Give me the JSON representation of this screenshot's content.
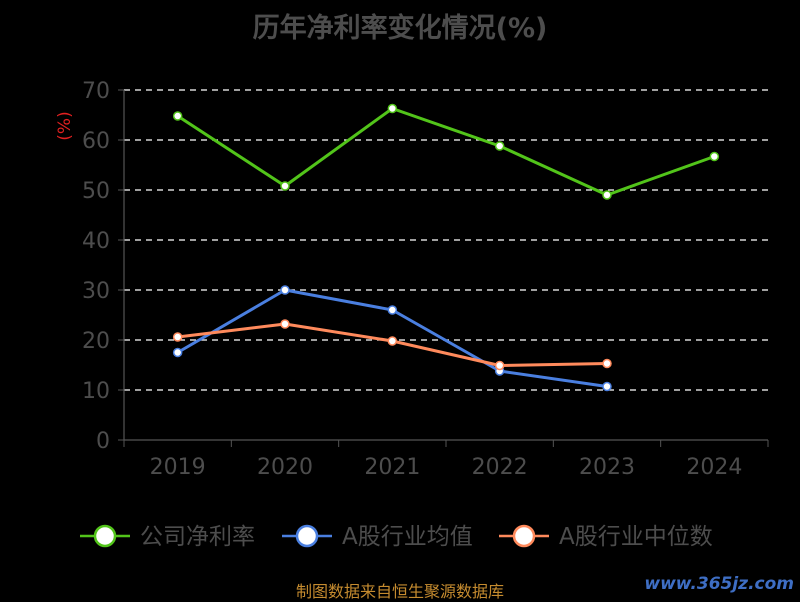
{
  "chart_data": {
    "type": "line",
    "title": "历年净利率变化情况(%)",
    "ylabel": "(%)",
    "ylim": [
      0,
      70
    ],
    "yticks": [
      0,
      10,
      20,
      30,
      40,
      50,
      60,
      70
    ],
    "grid": true,
    "legend_position": "bottom",
    "categories": [
      "2019",
      "2020",
      "2021",
      "2022",
      "2023",
      "2024"
    ],
    "series": [
      {
        "name": "公司净利率",
        "color": "#52c41a",
        "values": [
          64.8,
          50.8,
          66.3,
          58.8,
          49.0,
          56.7
        ]
      },
      {
        "name": "A股行业均值",
        "color": "#4a7fe0",
        "values": [
          17.5,
          30.0,
          26.0,
          13.8,
          10.7,
          null
        ]
      },
      {
        "name": "A股行业中位数",
        "color": "#ff8a5c",
        "values": [
          20.6,
          23.2,
          19.8,
          14.9,
          15.3,
          null
        ]
      }
    ]
  },
  "source": "制图数据来自恒生聚源数据库",
  "watermark": "www.365jz.com"
}
